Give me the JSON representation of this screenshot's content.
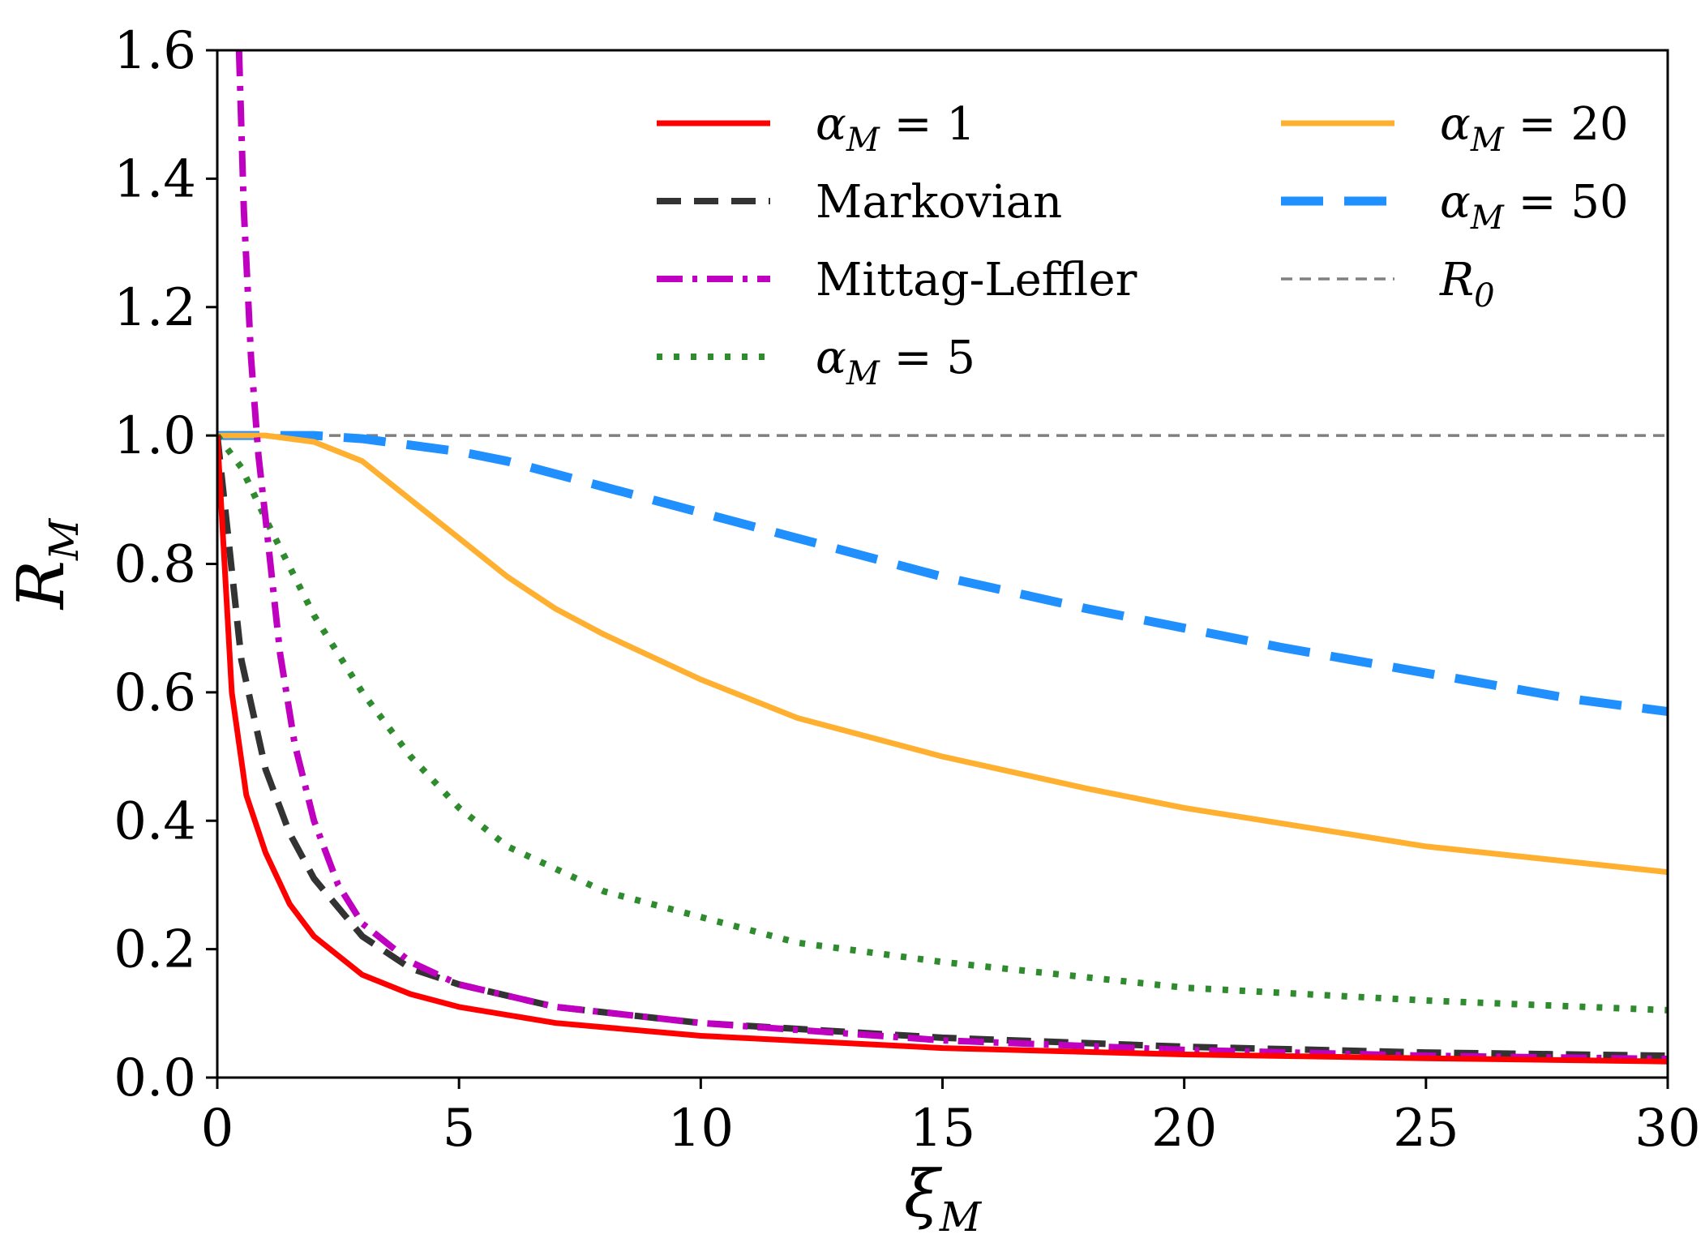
{
  "chart_data": {
    "type": "line",
    "xlabel": "ξ",
    "xlabel_sub": "M",
    "ylabel": "R",
    "ylabel_sub": "M",
    "xlim": [
      0,
      30
    ],
    "ylim": [
      0,
      1.6
    ],
    "xticks": [
      0,
      5,
      10,
      15,
      20,
      25,
      30
    ],
    "xtick_labels": [
      "0",
      "5",
      "10",
      "15",
      "20",
      "25",
      "30"
    ],
    "yticks": [
      0,
      0.2,
      0.4,
      0.6,
      0.8,
      1.0,
      1.2,
      1.4,
      1.6
    ],
    "ytick_labels": [
      "0.0",
      "0.2",
      "0.4",
      "0.6",
      "0.8",
      "1.0",
      "1.2",
      "1.4",
      "1.6"
    ],
    "legend_position": "top-right",
    "series": [
      {
        "id": "alpha1",
        "name": "α",
        "name_sub": "M",
        "name_suffix": " = 1",
        "color": "#ff0000",
        "style": "solid",
        "x": [
          0,
          0.3,
          0.6,
          1,
          1.5,
          2,
          3,
          4,
          5,
          7,
          10,
          15,
          20,
          25,
          30
        ],
        "y": [
          1.0,
          0.6,
          0.44,
          0.35,
          0.27,
          0.22,
          0.16,
          0.13,
          0.11,
          0.085,
          0.065,
          0.046,
          0.036,
          0.03,
          0.025
        ]
      },
      {
        "id": "markovian",
        "name": "Markovian",
        "color": "#333333",
        "style": "dashed",
        "x": [
          0,
          0.5,
          1,
          1.5,
          2,
          3,
          4,
          5,
          7,
          10,
          15,
          20,
          25,
          30
        ],
        "y": [
          1.0,
          0.65,
          0.48,
          0.38,
          0.31,
          0.22,
          0.17,
          0.145,
          0.11,
          0.085,
          0.062,
          0.048,
          0.039,
          0.034
        ]
      },
      {
        "id": "mittag",
        "name": "Mittag-Leffler",
        "color": "#c000c0",
        "style": "dashdot",
        "x": [
          0.45,
          0.55,
          0.7,
          0.85,
          1,
          1.3,
          1.6,
          2,
          2.5,
          3,
          4,
          5,
          7,
          10,
          15,
          20,
          25,
          30
        ],
        "y": [
          1.6,
          1.35,
          1.12,
          0.97,
          0.87,
          0.66,
          0.52,
          0.4,
          0.3,
          0.24,
          0.18,
          0.145,
          0.11,
          0.085,
          0.058,
          0.043,
          0.034,
          0.029
        ]
      },
      {
        "id": "alpha5",
        "name": "α",
        "name_sub": "M",
        "name_suffix": " = 5",
        "color": "#2e8b2e",
        "style": "dotted",
        "x": [
          0,
          0.5,
          1,
          2,
          3,
          4,
          5,
          6,
          8,
          10,
          12,
          15,
          20,
          25,
          30
        ],
        "y": [
          1.0,
          0.95,
          0.87,
          0.72,
          0.6,
          0.5,
          0.42,
          0.36,
          0.29,
          0.25,
          0.21,
          0.18,
          0.14,
          0.12,
          0.105
        ]
      },
      {
        "id": "alpha20",
        "name": "α",
        "name_sub": "M",
        "name_suffix": " = 20",
        "color": "#ffb030",
        "style": "solid",
        "x": [
          0,
          1,
          2,
          3,
          4,
          5,
          6,
          7,
          8,
          10,
          12,
          15,
          18,
          20,
          25,
          30
        ],
        "y": [
          1.0,
          1.0,
          0.99,
          0.96,
          0.9,
          0.84,
          0.78,
          0.73,
          0.69,
          0.62,
          0.56,
          0.5,
          0.45,
          0.42,
          0.36,
          0.32
        ]
      },
      {
        "id": "alpha50",
        "name": "α",
        "name_sub": "M",
        "name_suffix": " = 50",
        "color": "#2090ff",
        "style": "longdash",
        "x": [
          0,
          2,
          3,
          4,
          5,
          6,
          8,
          10,
          12,
          15,
          18,
          20,
          22,
          25,
          28,
          30
        ],
        "y": [
          1.0,
          1.0,
          0.995,
          0.985,
          0.975,
          0.96,
          0.92,
          0.88,
          0.84,
          0.78,
          0.73,
          0.7,
          0.67,
          0.63,
          0.59,
          0.57
        ]
      },
      {
        "id": "r0",
        "name": "R",
        "name_sub": "0",
        "name_suffix": "",
        "color": "#808080",
        "style": "thindash",
        "x": [
          0,
          30
        ],
        "y": [
          1.0,
          1.0
        ]
      }
    ]
  }
}
